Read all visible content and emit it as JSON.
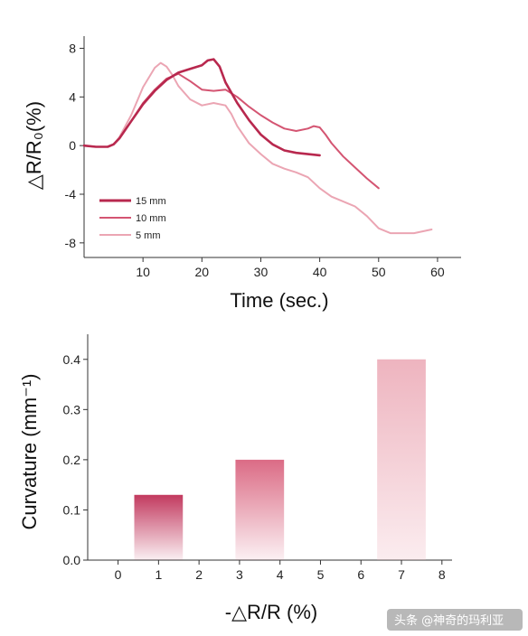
{
  "chart_data": [
    {
      "type": "line",
      "xlabel": "Time (sec.)",
      "ylabel": "△R/R₀(%)",
      "xlim": [
        0,
        64
      ],
      "ylim": [
        -9.2,
        9
      ],
      "xticks": [
        "10",
        "20",
        "30",
        "40",
        "50",
        "60"
      ],
      "xtick_values": [
        10,
        20,
        30,
        40,
        50,
        60
      ],
      "yticks": [
        "8",
        "4",
        "0",
        "-4",
        "-8"
      ],
      "ytick_values": [
        8,
        4,
        0,
        -4,
        -8
      ],
      "legend_position": "bottom-left",
      "series": [
        {
          "name": "15 mm",
          "color": "#b8284e",
          "x": [
            0,
            2,
            4,
            5,
            6,
            8,
            10,
            12,
            14,
            16,
            18,
            20,
            21,
            22,
            23,
            24,
            26,
            28,
            30,
            32,
            34,
            36,
            38,
            40
          ],
          "y": [
            0,
            -0.1,
            -0.1,
            0.1,
            0.6,
            2.0,
            3.4,
            4.5,
            5.4,
            6.0,
            6.3,
            6.6,
            7.0,
            7.1,
            6.5,
            5.2,
            3.5,
            2.1,
            0.9,
            0.1,
            -0.4,
            -0.6,
            -0.7,
            -0.8
          ]
        },
        {
          "name": "10 mm",
          "color": "#d45572",
          "x": [
            0,
            2,
            4,
            5,
            6,
            8,
            10,
            12,
            14,
            16,
            18,
            20,
            22,
            24,
            26,
            28,
            30,
            32,
            34,
            36,
            38,
            39,
            40,
            41,
            42,
            44,
            46,
            48,
            50
          ],
          "y": [
            0,
            -0.1,
            -0.1,
            0.1,
            0.6,
            2.0,
            3.5,
            4.6,
            5.5,
            5.9,
            5.3,
            4.6,
            4.5,
            4.6,
            4.0,
            3.2,
            2.5,
            1.9,
            1.4,
            1.2,
            1.4,
            1.6,
            1.5,
            0.9,
            0.2,
            -0.9,
            -1.8,
            -2.7,
            -3.5
          ]
        },
        {
          "name": "5 mm",
          "color": "#eba5b3",
          "x": [
            0,
            2,
            4,
            5,
            6,
            8,
            10,
            12,
            13,
            14,
            15,
            16,
            18,
            20,
            22,
            24,
            25,
            26,
            28,
            30,
            32,
            34,
            36,
            38,
            40,
            42,
            44,
            46,
            48,
            50,
            52,
            54,
            56,
            58,
            59
          ],
          "y": [
            0,
            -0.1,
            -0.1,
            0.1,
            0.7,
            2.5,
            4.8,
            6.4,
            6.8,
            6.5,
            5.8,
            4.9,
            3.8,
            3.3,
            3.5,
            3.3,
            2.6,
            1.6,
            0.2,
            -0.7,
            -1.5,
            -1.9,
            -2.2,
            -2.6,
            -3.5,
            -4.2,
            -4.6,
            -5.0,
            -5.8,
            -6.8,
            -7.2,
            -7.2,
            -7.2,
            -7.0,
            -6.9
          ]
        }
      ]
    },
    {
      "type": "bar",
      "xlabel": "-△R/R (%)",
      "ylabel": "Curvature (mm⁻¹)",
      "xlim": [
        -0.75,
        8.25
      ],
      "ylim": [
        0,
        0.45
      ],
      "xticks": [
        "0",
        "1",
        "2",
        "3",
        "4",
        "5",
        "6",
        "7",
        "8"
      ],
      "xtick_values": [
        0,
        1,
        2,
        3,
        4,
        5,
        6,
        7,
        8
      ],
      "yticks": [
        "0.0",
        "0.1",
        "0.2",
        "0.3",
        "0.4"
      ],
      "ytick_values": [
        0,
        0.1,
        0.2,
        0.3,
        0.4
      ],
      "bar_width": 1.2,
      "x": [
        1,
        3.5,
        7
      ],
      "values": [
        0.13,
        0.2,
        0.4
      ],
      "colors": [
        "#c23a5f",
        "#db6b85",
        "#eeb4bf"
      ]
    }
  ],
  "watermark": "头条 @神奇的玛利亚"
}
